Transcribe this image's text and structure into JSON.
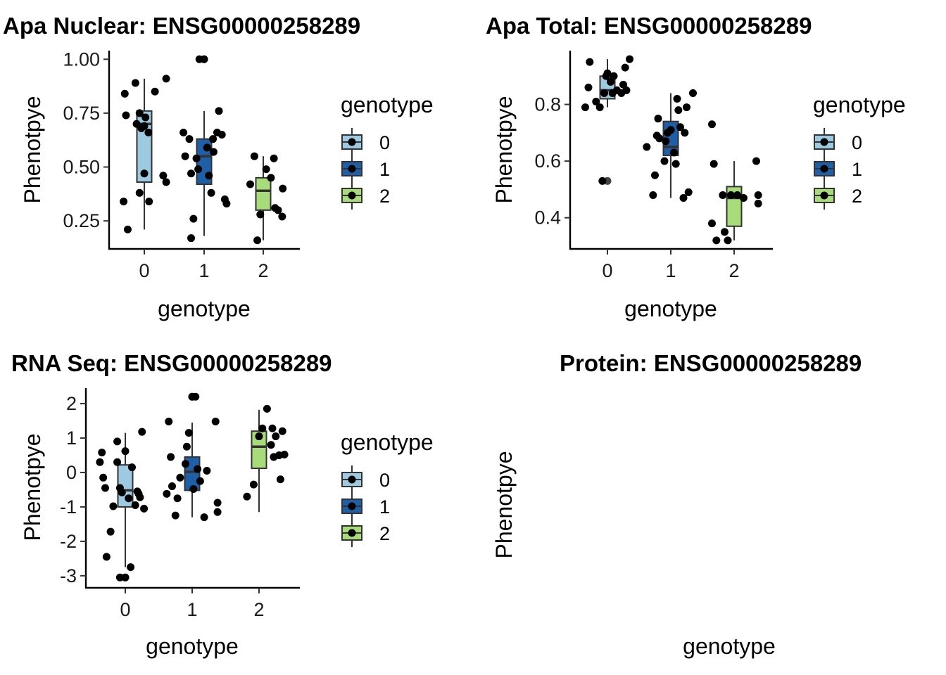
{
  "chart_data": [
    {
      "type": "box",
      "title": "Apa Nuclear: ENSG00000258289",
      "xlabel": "genotype",
      "ylabel": "Phenotpye",
      "categories": [
        "0",
        "1",
        "2"
      ],
      "ylim": [
        0.12,
        1.04
      ],
      "yticks": [
        "0.25",
        "0.50",
        "0.75",
        "1.00"
      ],
      "boxes": [
        {
          "category": "0",
          "whisker_low": 0.21,
          "q1": 0.43,
          "median": 0.7,
          "q3": 0.76,
          "whisker_high": 0.91
        },
        {
          "category": "1",
          "whisker_low": 0.18,
          "q1": 0.42,
          "median": 0.55,
          "q3": 0.63,
          "whisker_high": 0.76
        },
        {
          "category": "2",
          "whisker_low": 0.16,
          "q1": 0.3,
          "median": 0.39,
          "q3": 0.45,
          "whisker_high": 0.55
        }
      ],
      "outliers": [
        {
          "x": "1",
          "y": 1.0
        }
      ],
      "points": [
        {
          "x": -0.35,
          "y": 0.34
        },
        {
          "x": -0.28,
          "y": 0.21
        },
        {
          "x": -0.33,
          "y": 0.84
        },
        {
          "x": -0.31,
          "y": 0.74
        },
        {
          "x": -0.15,
          "y": 0.89
        },
        {
          "x": -0.13,
          "y": 0.7
        },
        {
          "x": -0.08,
          "y": 0.38
        },
        {
          "x": -0.05,
          "y": 0.68
        },
        {
          "x": -0.08,
          "y": 0.75
        },
        {
          "x": 0.0,
          "y": 0.69
        },
        {
          "x": 0.0,
          "y": 0.47
        },
        {
          "x": 0.02,
          "y": 0.73
        },
        {
          "x": 0.07,
          "y": 0.66
        },
        {
          "x": 0.08,
          "y": 0.34
        },
        {
          "x": 0.18,
          "y": 0.85
        },
        {
          "x": 0.32,
          "y": 0.46
        },
        {
          "x": 0.37,
          "y": 0.91
        },
        {
          "x": 0.37,
          "y": 0.43
        },
        {
          "x": -0.35,
          "y": 0.66
        },
        {
          "x": -0.32,
          "y": 0.55
        },
        {
          "x": -0.25,
          "y": 0.63
        },
        {
          "x": -0.22,
          "y": 0.47
        },
        {
          "x": -0.18,
          "y": 0.26
        },
        {
          "x": -0.22,
          "y": 0.17
        },
        {
          "x": -0.13,
          "y": 0.54
        },
        {
          "x": -0.1,
          "y": 0.49
        },
        {
          "x": -0.08,
          "y": 1.0
        },
        {
          "x": 0.0,
          "y": 1.0
        },
        {
          "x": 0.05,
          "y": 0.59
        },
        {
          "x": 0.08,
          "y": 0.46
        },
        {
          "x": 0.12,
          "y": 0.38
        },
        {
          "x": 0.15,
          "y": 0.63
        },
        {
          "x": 0.16,
          "y": 0.57
        },
        {
          "x": 0.22,
          "y": 0.66
        },
        {
          "x": 0.25,
          "y": 0.76
        },
        {
          "x": 0.3,
          "y": 0.65
        },
        {
          "x": 0.35,
          "y": 0.35
        },
        {
          "x": 0.38,
          "y": 0.33
        },
        {
          "x": -0.22,
          "y": 0.42
        },
        {
          "x": -0.15,
          "y": 0.55
        },
        {
          "x": -0.1,
          "y": 0.16
        },
        {
          "x": -0.05,
          "y": 0.28
        },
        {
          "x": 0.05,
          "y": 0.49
        },
        {
          "x": 0.13,
          "y": 0.45
        },
        {
          "x": 0.18,
          "y": 0.54
        },
        {
          "x": 0.2,
          "y": 0.31
        },
        {
          "x": 0.25,
          "y": 0.3
        },
        {
          "x": 0.32,
          "y": 0.27
        },
        {
          "x": 0.33,
          "y": 0.4
        }
      ],
      "points_group_counts": [
        18,
        20,
        11
      ]
    },
    {
      "type": "box",
      "title": "Apa Total: ENSG00000258289",
      "xlabel": "genotype",
      "ylabel": "Phenotpye",
      "categories": [
        "0",
        "1",
        "2"
      ],
      "ylim": [
        0.29,
        0.99
      ],
      "yticks": [
        "0.4",
        "0.6",
        "0.8"
      ],
      "boxes": [
        {
          "category": "0",
          "whisker_low": 0.79,
          "q1": 0.82,
          "median": 0.85,
          "q3": 0.9,
          "whisker_high": 0.96
        },
        {
          "category": "1",
          "whisker_low": 0.47,
          "q1": 0.62,
          "median": 0.65,
          "q3": 0.74,
          "whisker_high": 0.84
        },
        {
          "category": "2",
          "whisker_low": 0.32,
          "q1": 0.37,
          "median": 0.47,
          "q3": 0.51,
          "whisker_high": 0.6
        }
      ],
      "outliers": [
        {
          "x": "0",
          "y": 0.53
        }
      ],
      "points": [
        {
          "x": -0.35,
          "y": 0.79
        },
        {
          "x": -0.3,
          "y": 0.86
        },
        {
          "x": -0.28,
          "y": 0.95
        },
        {
          "x": -0.18,
          "y": 0.81
        },
        {
          "x": -0.12,
          "y": 0.79
        },
        {
          "x": -0.08,
          "y": 0.53
        },
        {
          "x": -0.02,
          "y": 0.9
        },
        {
          "x": 0.0,
          "y": 0.91
        },
        {
          "x": -0.05,
          "y": 0.84
        },
        {
          "x": 0.05,
          "y": 0.88
        },
        {
          "x": 0.08,
          "y": 0.84
        },
        {
          "x": 0.1,
          "y": 0.9
        },
        {
          "x": 0.15,
          "y": 0.85
        },
        {
          "x": 0.22,
          "y": 0.84
        },
        {
          "x": 0.25,
          "y": 0.87
        },
        {
          "x": 0.28,
          "y": 0.93
        },
        {
          "x": 0.3,
          "y": 0.85
        },
        {
          "x": 0.35,
          "y": 0.96
        },
        {
          "x": -0.38,
          "y": 0.65
        },
        {
          "x": -0.28,
          "y": 0.48
        },
        {
          "x": -0.25,
          "y": 0.55
        },
        {
          "x": -0.22,
          "y": 0.69
        },
        {
          "x": -0.2,
          "y": 0.75
        },
        {
          "x": -0.18,
          "y": 0.68
        },
        {
          "x": -0.1,
          "y": 0.6
        },
        {
          "x": -0.08,
          "y": 0.67
        },
        {
          "x": -0.05,
          "y": 0.7
        },
        {
          "x": 0.0,
          "y": 0.71
        },
        {
          "x": 0.05,
          "y": 0.63
        },
        {
          "x": 0.08,
          "y": 0.59
        },
        {
          "x": 0.1,
          "y": 0.82
        },
        {
          "x": 0.12,
          "y": 0.78
        },
        {
          "x": 0.15,
          "y": 0.72
        },
        {
          "x": 0.2,
          "y": 0.47
        },
        {
          "x": 0.22,
          "y": 0.7
        },
        {
          "x": 0.25,
          "y": 0.79
        },
        {
          "x": 0.28,
          "y": 0.49
        },
        {
          "x": 0.35,
          "y": 0.84
        },
        {
          "x": -0.35,
          "y": 0.73
        },
        {
          "x": -0.35,
          "y": 0.38
        },
        {
          "x": -0.32,
          "y": 0.59
        },
        {
          "x": -0.28,
          "y": 0.32
        },
        {
          "x": -0.18,
          "y": 0.48
        },
        {
          "x": -0.15,
          "y": 0.35
        },
        {
          "x": -0.1,
          "y": 0.32
        },
        {
          "x": -0.05,
          "y": 0.48
        },
        {
          "x": 0.05,
          "y": 0.48
        },
        {
          "x": 0.15,
          "y": 0.47
        },
        {
          "x": 0.35,
          "y": 0.6
        },
        {
          "x": 0.38,
          "y": 0.45
        },
        {
          "x": 0.38,
          "y": 0.48
        }
      ],
      "points_group_counts": [
        18,
        20,
        13
      ]
    },
    {
      "type": "box",
      "title": "RNA Seq: ENSG00000258289",
      "xlabel": "genotype",
      "ylabel": "Phenotpye",
      "categories": [
        "0",
        "1",
        "2"
      ],
      "ylim": [
        -3.35,
        2.45
      ],
      "yticks": [
        "-3",
        "-2",
        "-1",
        "0",
        "1",
        "2"
      ],
      "boxes": [
        {
          "category": "0",
          "whisker_low": -2.75,
          "q1": -1.0,
          "median": -0.52,
          "q3": 0.22,
          "whisker_high": 1.15
        },
        {
          "category": "1",
          "whisker_low": -1.3,
          "q1": -0.52,
          "median": 0.02,
          "q3": 0.45,
          "whisker_high": 1.45
        },
        {
          "category": "2",
          "whisker_low": -1.15,
          "q1": 0.12,
          "median": 0.75,
          "q3": 1.2,
          "whisker_high": 1.82
        }
      ],
      "outliers": [
        {
          "x": "0",
          "y": -3.05
        },
        {
          "x": "1",
          "y": 2.2
        }
      ],
      "points": [
        {
          "x": -0.38,
          "y": 0.3
        },
        {
          "x": -0.35,
          "y": 0.58
        },
        {
          "x": -0.33,
          "y": -0.15
        },
        {
          "x": -0.3,
          "y": -0.45
        },
        {
          "x": -0.28,
          "y": -2.45
        },
        {
          "x": -0.22,
          "y": -1.72
        },
        {
          "x": -0.18,
          "y": -0.98
        },
        {
          "x": -0.12,
          "y": 0.3
        },
        {
          "x": -0.08,
          "y": -3.05
        },
        {
          "x": -0.05,
          "y": -0.58
        },
        {
          "x": 0.0,
          "y": 0.62
        },
        {
          "x": 0.0,
          "y": -3.05
        },
        {
          "x": 0.05,
          "y": -0.75
        },
        {
          "x": 0.08,
          "y": -2.75
        },
        {
          "x": 0.1,
          "y": 0.15
        },
        {
          "x": 0.15,
          "y": -0.95
        },
        {
          "x": 0.18,
          "y": -0.55
        },
        {
          "x": 0.2,
          "y": -0.62
        },
        {
          "x": 0.22,
          "y": -0.72
        },
        {
          "x": 0.25,
          "y": 1.18
        },
        {
          "x": 0.28,
          "y": -1.05
        },
        {
          "x": -0.12,
          "y": 0.9
        },
        {
          "x": -0.08,
          "y": -0.45
        },
        {
          "x": -0.38,
          "y": -0.62
        },
        {
          "x": -0.35,
          "y": 1.48
        },
        {
          "x": -0.32,
          "y": 0.45
        },
        {
          "x": -0.3,
          "y": -0.4
        },
        {
          "x": -0.25,
          "y": -1.25
        },
        {
          "x": -0.22,
          "y": -0.75
        },
        {
          "x": -0.18,
          "y": -0.15
        },
        {
          "x": -0.1,
          "y": 0.25
        },
        {
          "x": -0.08,
          "y": 0.75
        },
        {
          "x": -0.05,
          "y": 1.15
        },
        {
          "x": 0.0,
          "y": 2.2
        },
        {
          "x": 0.02,
          "y": -0.48
        },
        {
          "x": 0.05,
          "y": 2.2
        },
        {
          "x": 0.08,
          "y": 0.1
        },
        {
          "x": 0.12,
          "y": -0.25
        },
        {
          "x": 0.18,
          "y": -1.3
        },
        {
          "x": 0.22,
          "y": 0.05
        },
        {
          "x": 0.35,
          "y": 1.48
        },
        {
          "x": 0.38,
          "y": -0.88
        },
        {
          "x": -0.62,
          "y": -1.15
        },
        {
          "x": -0.18,
          "y": -0.7
        },
        {
          "x": -0.08,
          "y": -0.35
        },
        {
          "x": 0.0,
          "y": 1.05
        },
        {
          "x": 0.05,
          "y": 1.28
        },
        {
          "x": 0.12,
          "y": 1.85
        },
        {
          "x": 0.18,
          "y": 0.8
        },
        {
          "x": 0.2,
          "y": 1.28
        },
        {
          "x": 0.22,
          "y": 0.45
        },
        {
          "x": 0.25,
          "y": 1.05
        },
        {
          "x": 0.3,
          "y": 0.5
        },
        {
          "x": 0.32,
          "y": -0.2
        },
        {
          "x": 0.35,
          "y": 1.2
        },
        {
          "x": 0.38,
          "y": 0.52
        }
      ],
      "points_group_counts": [
        23,
        19,
        14
      ]
    },
    {
      "type": "box",
      "title": "Protein: ENSG00000258289",
      "xlabel": "genotype",
      "ylabel": "Phenotpye",
      "empty": true
    }
  ],
  "legend": {
    "title": "genotype",
    "items": [
      {
        "label": "0",
        "color": "#9ecae1"
      },
      {
        "label": "1",
        "color": "#1f5fa8"
      },
      {
        "label": "2",
        "color": "#a8dc7a"
      }
    ]
  },
  "style": {
    "box_colors": [
      "#9ecae1",
      "#1f5fa8",
      "#a8dc7a"
    ],
    "point_color": "#000000",
    "outline_color": "#333333"
  }
}
